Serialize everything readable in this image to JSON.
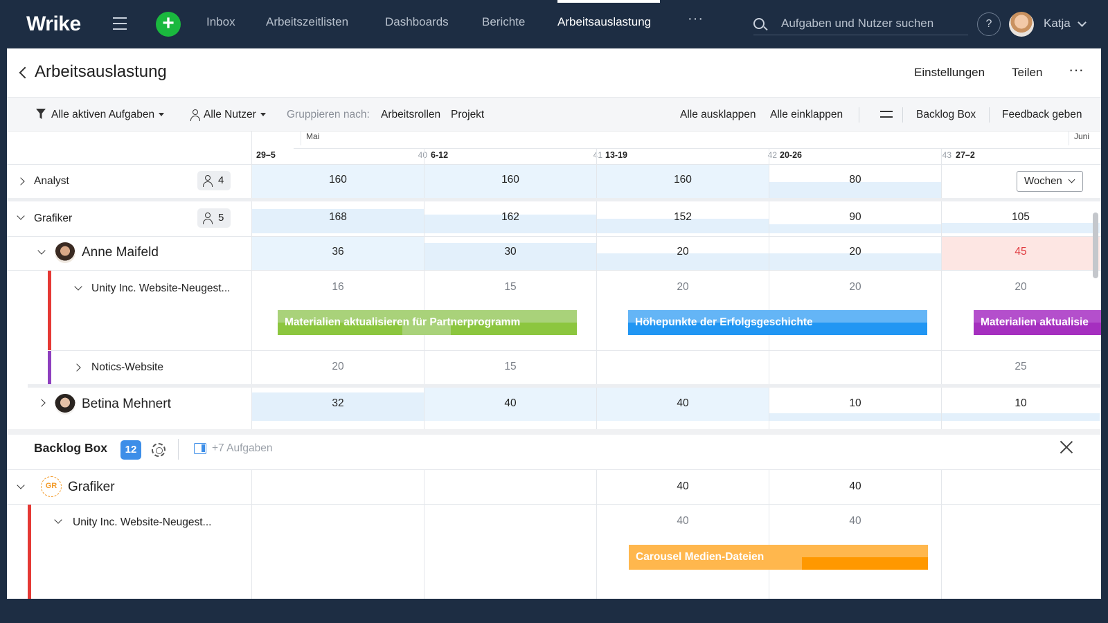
{
  "app": {
    "logo": "Wrike",
    "user": "Katja",
    "help": "?"
  },
  "nav": {
    "tabs": [
      "Inbox",
      "Arbeitszeitlisten",
      "Dashboards",
      "Berichte",
      "Arbeitsauslastung"
    ],
    "active": "Arbeitsauslastung",
    "more": "···",
    "search_placeholder": "Aufgaben und Nutzer suchen"
  },
  "header": {
    "title": "Arbeitsauslastung",
    "settings": "Einstellungen",
    "share": "Teilen",
    "more": "···"
  },
  "toolbar": {
    "filter": "Alle aktiven Aufgaben",
    "users": "Alle Nutzer",
    "group_label": "Gruppieren nach:",
    "group_roles": "Arbeitsrollen",
    "group_project": "Projekt",
    "expand_all": "Alle ausklappen",
    "collapse_all": "Alle einklappen",
    "backlog": "Backlog Box",
    "feedback": "Feedback geben"
  },
  "timeline": {
    "month_may": "Mai",
    "month_june": "Juni",
    "weeks": [
      {
        "label": "29–5",
        "num": "40"
      },
      {
        "label": "6-12",
        "num": "41"
      },
      {
        "label": "13-19",
        "num": "42"
      },
      {
        "label": "20-26",
        "num": "43"
      },
      {
        "label": "27–2",
        "num": ""
      }
    ],
    "scale": "Wochen"
  },
  "rows": {
    "analyst": {
      "label": "Analyst",
      "count": "4",
      "values": [
        "160",
        "160",
        "160",
        "80",
        ""
      ]
    },
    "grafiker": {
      "label": "Grafiker",
      "count": "5",
      "values": [
        "168",
        "162",
        "152",
        "90",
        "105"
      ]
    },
    "anne": {
      "label": "Anne Maifeld",
      "values": [
        "36",
        "30",
        "20",
        "20",
        "45"
      ]
    },
    "unity": {
      "label": "Unity Inc. Website-Neugest...",
      "values": [
        "16",
        "15",
        "20",
        "20",
        "20"
      ]
    },
    "notics": {
      "label": "Notics-Website",
      "values": [
        "20",
        "15",
        "",
        "",
        "25"
      ]
    },
    "betina": {
      "label": "Betina Mehnert",
      "values": [
        "32",
        "40",
        "40",
        "10",
        "10"
      ]
    }
  },
  "tasks": {
    "t1": "Materialien aktualisieren für Partnerprogramm",
    "t2": "Höhepunkte der Erfolgsgeschichte",
    "t3": "Materialien aktualisie",
    "t4": "Carousel Medien-Dateien"
  },
  "backlog": {
    "title": "Backlog Box",
    "count": "12",
    "more_tasks": "+7 Aufgaben",
    "group": {
      "label": "Grafiker",
      "initials": "GR",
      "values": [
        "",
        "",
        "40",
        "40",
        ""
      ]
    },
    "project": {
      "label": "Unity Inc. Website-Neugest...",
      "values": [
        "",
        "",
        "40",
        "40",
        ""
      ]
    }
  },
  "colors": {
    "nav_bg": "#1d2d43",
    "accent_green": "#1ab83e",
    "task_green": "#8cc63f",
    "task_blue": "#2196f3",
    "task_purple": "#a52fbf",
    "task_orange": "#ff9800",
    "overload_red": "#e0393e",
    "badge_blue": "#3d8ee8"
  }
}
